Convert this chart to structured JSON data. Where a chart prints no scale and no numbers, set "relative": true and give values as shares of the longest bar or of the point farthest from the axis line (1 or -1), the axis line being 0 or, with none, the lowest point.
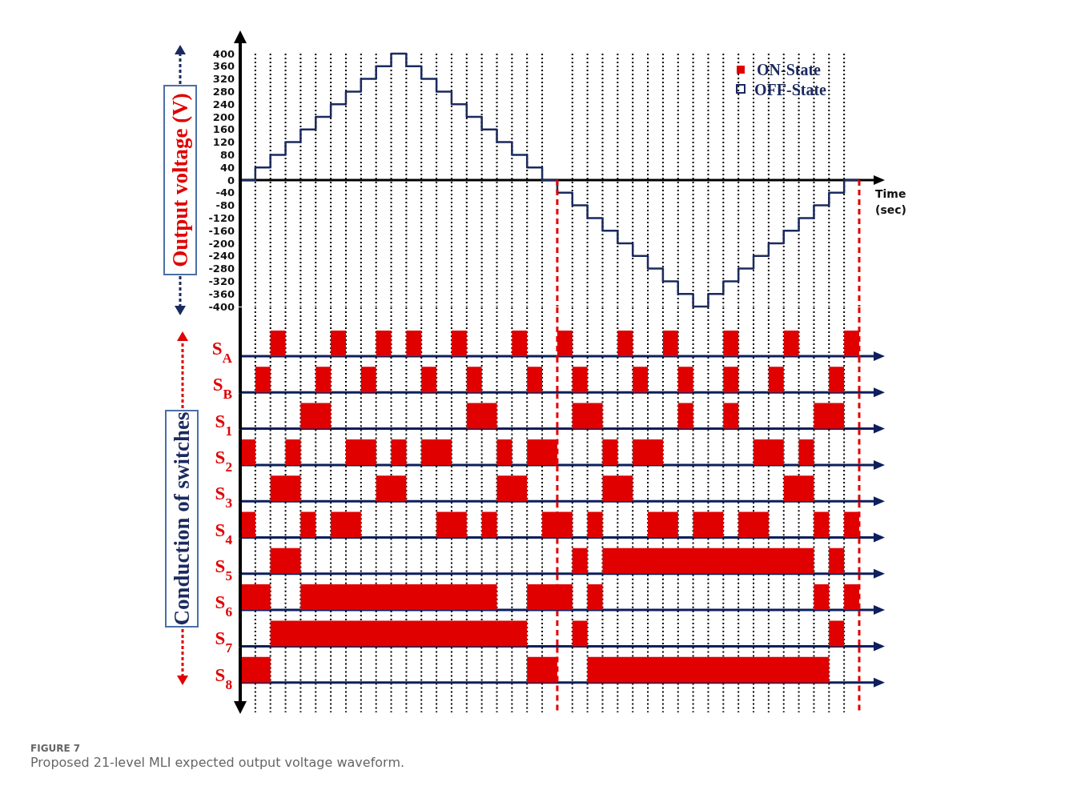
{
  "chart_data": [
    {
      "type": "step",
      "ylabel": "Output voltage (V)",
      "xlabel": "Time (sec)",
      "categories": [
        null,
        null,
        null,
        null,
        null,
        null,
        null,
        null,
        null,
        null,
        null,
        null,
        null,
        null,
        null,
        null,
        null,
        null,
        null,
        null,
        null,
        null,
        null,
        null,
        null,
        null,
        null,
        null,
        null,
        null,
        null,
        null,
        null,
        null,
        null,
        null,
        null,
        null,
        null,
        null,
        null,
        null
      ],
      "series": [
        {
          "color": "#1b2a5e",
          "values": [
            0,
            40,
            80,
            120,
            160,
            200,
            240,
            280,
            320,
            360,
            400,
            360,
            320,
            280,
            240,
            200,
            160,
            120,
            80,
            40,
            0,
            -40,
            -80,
            -120,
            -160,
            -200,
            -240,
            -280,
            -320,
            -360,
            -400,
            -360,
            -320,
            -280,
            -240,
            -200,
            -160,
            -120,
            -80,
            -40,
            0,
            0
          ]
        }
      ],
      "ylim": [
        -400,
        400
      ],
      "yticks": [
        400,
        360,
        320,
        280,
        240,
        200,
        160,
        120,
        80,
        40,
        0,
        -40,
        -80,
        -120,
        -160,
        -200,
        -240,
        -280,
        -320,
        -360,
        -400
      ],
      "grid": "x",
      "tick_labels": "y",
      "annotations": [
        "ON-State",
        "OFF-State"
      ]
    },
    {
      "type": "area",
      "ylabel": "S$_{A}$",
      "relative": true,
      "color": "#e00000",
      "grid": "x",
      "categories": [
        null,
        null,
        null,
        null,
        null,
        null,
        null,
        null,
        null,
        null,
        null,
        null,
        null,
        null,
        null,
        null,
        null,
        null,
        null,
        null,
        null,
        null,
        null,
        null,
        null,
        null,
        null,
        null,
        null,
        null,
        null,
        null,
        null,
        null,
        null,
        null,
        null,
        null,
        null,
        null,
        null,
        null
      ],
      "values": [
        0,
        0,
        1,
        0,
        0,
        0,
        1,
        0,
        0,
        1,
        0,
        1,
        0,
        0,
        1,
        0,
        0,
        0,
        1,
        0,
        0,
        1,
        0,
        0,
        0,
        1,
        0,
        0,
        1,
        0,
        0,
        0,
        1,
        0,
        0,
        0,
        1,
        0,
        0,
        0,
        1,
        1
      ]
    },
    {
      "type": "area",
      "ylabel": "S$_{B}$",
      "relative": true,
      "color": "#e00000",
      "grid": "x",
      "categories": [
        null,
        null,
        null,
        null,
        null,
        null,
        null,
        null,
        null,
        null,
        null,
        null,
        null,
        null,
        null,
        null,
        null,
        null,
        null,
        null,
        null,
        null,
        null,
        null,
        null,
        null,
        null,
        null,
        null,
        null,
        null,
        null,
        null,
        null,
        null,
        null,
        null,
        null,
        null,
        null,
        null,
        null
      ],
      "values": [
        0,
        1,
        0,
        0,
        0,
        1,
        0,
        0,
        1,
        0,
        0,
        0,
        1,
        0,
        0,
        1,
        0,
        0,
        0,
        1,
        0,
        0,
        1,
        0,
        0,
        0,
        1,
        0,
        0,
        1,
        0,
        0,
        1,
        0,
        0,
        1,
        0,
        0,
        0,
        1,
        0,
        0
      ]
    },
    {
      "type": "area",
      "ylabel": "S$_{1}$",
      "relative": true,
      "color": "#e00000",
      "grid": "x",
      "categories": [
        null,
        null,
        null,
        null,
        null,
        null,
        null,
        null,
        null,
        null,
        null,
        null,
        null,
        null,
        null,
        null,
        null,
        null,
        null,
        null,
        null,
        null,
        null,
        null,
        null,
        null,
        null,
        null,
        null,
        null,
        null,
        null,
        null,
        null,
        null,
        null,
        null,
        null,
        null,
        null,
        null,
        null
      ],
      "values": [
        0,
        0,
        0,
        0,
        1,
        1,
        0,
        0,
        0,
        0,
        0,
        0,
        0,
        0,
        0,
        1,
        1,
        0,
        0,
        0,
        0,
        0,
        1,
        1,
        0,
        0,
        0,
        0,
        0,
        1,
        0,
        0,
        1,
        0,
        0,
        0,
        0,
        0,
        1,
        1,
        0,
        0
      ]
    },
    {
      "type": "area",
      "ylabel": "S$_{2}$",
      "relative": true,
      "color": "#e00000",
      "grid": "x",
      "categories": [
        null,
        null,
        null,
        null,
        null,
        null,
        null,
        null,
        null,
        null,
        null,
        null,
        null,
        null,
        null,
        null,
        null,
        null,
        null,
        null,
        null,
        null,
        null,
        null,
        null,
        null,
        null,
        null,
        null,
        null,
        null,
        null,
        null,
        null,
        null,
        null,
        null,
        null,
        null,
        null,
        null,
        null
      ],
      "values": [
        1,
        0,
        0,
        1,
        0,
        0,
        0,
        1,
        1,
        0,
        1,
        0,
        1,
        1,
        0,
        0,
        0,
        1,
        0,
        1,
        1,
        0,
        0,
        0,
        1,
        0,
        1,
        1,
        0,
        0,
        0,
        0,
        0,
        0,
        1,
        1,
        0,
        1,
        0,
        0,
        0,
        0
      ]
    },
    {
      "type": "area",
      "ylabel": "S$_{3}$",
      "relative": true,
      "color": "#e00000",
      "grid": "x",
      "categories": [
        null,
        null,
        null,
        null,
        null,
        null,
        null,
        null,
        null,
        null,
        null,
        null,
        null,
        null,
        null,
        null,
        null,
        null,
        null,
        null,
        null,
        null,
        null,
        null,
        null,
        null,
        null,
        null,
        null,
        null,
        null,
        null,
        null,
        null,
        null,
        null,
        null,
        null,
        null,
        null,
        null,
        null
      ],
      "values": [
        0,
        0,
        1,
        1,
        0,
        0,
        0,
        0,
        0,
        1,
        1,
        0,
        0,
        0,
        0,
        0,
        0,
        1,
        1,
        0,
        0,
        0,
        0,
        0,
        1,
        1,
        0,
        0,
        0,
        0,
        0,
        0,
        0,
        0,
        0,
        0,
        1,
        1,
        0,
        0,
        0,
        0
      ]
    },
    {
      "type": "area",
      "ylabel": "S$_{4}$",
      "relative": true,
      "color": "#e00000",
      "grid": "x",
      "categories": [
        null,
        null,
        null,
        null,
        null,
        null,
        null,
        null,
        null,
        null,
        null,
        null,
        null,
        null,
        null,
        null,
        null,
        null,
        null,
        null,
        null,
        null,
        null,
        null,
        null,
        null,
        null,
        null,
        null,
        null,
        null,
        null,
        null,
        null,
        null,
        null,
        null,
        null,
        null,
        null,
        null,
        null
      ],
      "values": [
        1,
        0,
        0,
        0,
        1,
        0,
        1,
        1,
        0,
        0,
        0,
        0,
        0,
        1,
        1,
        0,
        1,
        0,
        0,
        0,
        1,
        1,
        0,
        1,
        0,
        0,
        0,
        1,
        1,
        0,
        1,
        1,
        0,
        1,
        1,
        0,
        0,
        0,
        1,
        0,
        1,
        1
      ]
    },
    {
      "type": "area",
      "ylabel": "S$_{5}$",
      "relative": true,
      "color": "#e00000",
      "grid": "x",
      "categories": [
        null,
        null,
        null,
        null,
        null,
        null,
        null,
        null,
        null,
        null,
        null,
        null,
        null,
        null,
        null,
        null,
        null,
        null,
        null,
        null,
        null,
        null,
        null,
        null,
        null,
        null,
        null,
        null,
        null,
        null,
        null,
        null,
        null,
        null,
        null,
        null,
        null,
        null,
        null,
        null,
        null,
        null
      ],
      "values": [
        0,
        0,
        1,
        1,
        0,
        0,
        0,
        0,
        0,
        0,
        0,
        0,
        0,
        0,
        0,
        0,
        0,
        0,
        0,
        0,
        0,
        0,
        1,
        0,
        1,
        1,
        1,
        1,
        1,
        1,
        1,
        1,
        1,
        1,
        1,
        1,
        1,
        1,
        0,
        1,
        0,
        0
      ]
    },
    {
      "type": "area",
      "ylabel": "S$_{6}$",
      "relative": true,
      "color": "#e00000",
      "grid": "x",
      "categories": [
        null,
        null,
        null,
        null,
        null,
        null,
        null,
        null,
        null,
        null,
        null,
        null,
        null,
        null,
        null,
        null,
        null,
        null,
        null,
        null,
        null,
        null,
        null,
        null,
        null,
        null,
        null,
        null,
        null,
        null,
        null,
        null,
        null,
        null,
        null,
        null,
        null,
        null,
        null,
        null,
        null,
        null
      ],
      "values": [
        1,
        1,
        0,
        0,
        1,
        1,
        1,
        1,
        1,
        1,
        1,
        1,
        1,
        1,
        1,
        1,
        1,
        0,
        0,
        1,
        1,
        1,
        0,
        1,
        0,
        0,
        0,
        0,
        0,
        0,
        0,
        0,
        0,
        0,
        0,
        0,
        0,
        0,
        1,
        0,
        1,
        1
      ]
    },
    {
      "type": "area",
      "ylabel": "S$_{7}$",
      "relative": true,
      "color": "#e00000",
      "grid": "x",
      "categories": [
        null,
        null,
        null,
        null,
        null,
        null,
        null,
        null,
        null,
        null,
        null,
        null,
        null,
        null,
        null,
        null,
        null,
        null,
        null,
        null,
        null,
        null,
        null,
        null,
        null,
        null,
        null,
        null,
        null,
        null,
        null,
        null,
        null,
        null,
        null,
        null,
        null,
        null,
        null,
        null,
        null,
        null
      ],
      "values": [
        0,
        0,
        1,
        1,
        1,
        1,
        1,
        1,
        1,
        1,
        1,
        1,
        1,
        1,
        1,
        1,
        1,
        1,
        1,
        0,
        0,
        0,
        1,
        0,
        0,
        0,
        0,
        0,
        0,
        0,
        0,
        0,
        0,
        0,
        0,
        0,
        0,
        0,
        0,
        1,
        0,
        0
      ]
    },
    {
      "type": "area",
      "ylabel": "S$_{8}$",
      "relative": true,
      "color": "#e00000",
      "grid": "x",
      "categories": [
        null,
        null,
        null,
        null,
        null,
        null,
        null,
        null,
        null,
        null,
        null,
        null,
        null,
        null,
        null,
        null,
        null,
        null,
        null,
        null,
        null,
        null,
        null,
        null,
        null,
        null,
        null,
        null,
        null,
        null,
        null,
        null,
        null,
        null,
        null,
        null,
        null,
        null,
        null,
        null,
        null,
        null
      ],
      "values": [
        1,
        1,
        0,
        0,
        0,
        0,
        0,
        0,
        0,
        0,
        0,
        0,
        0,
        0,
        0,
        0,
        0,
        0,
        0,
        1,
        1,
        0,
        0,
        1,
        1,
        1,
        1,
        1,
        1,
        1,
        1,
        1,
        1,
        1,
        1,
        1,
        1,
        1,
        1,
        0,
        0,
        0
      ]
    },
    {
      "type": "other",
      "annotations": [
        "Conduction of switches"
      ]
    },
    {
      "type": "other",
      "annotations": [
        "FIGURE 7",
        "Proposed 21-level MLI expected output voltage waveform."
      ]
    }
  ]
}
